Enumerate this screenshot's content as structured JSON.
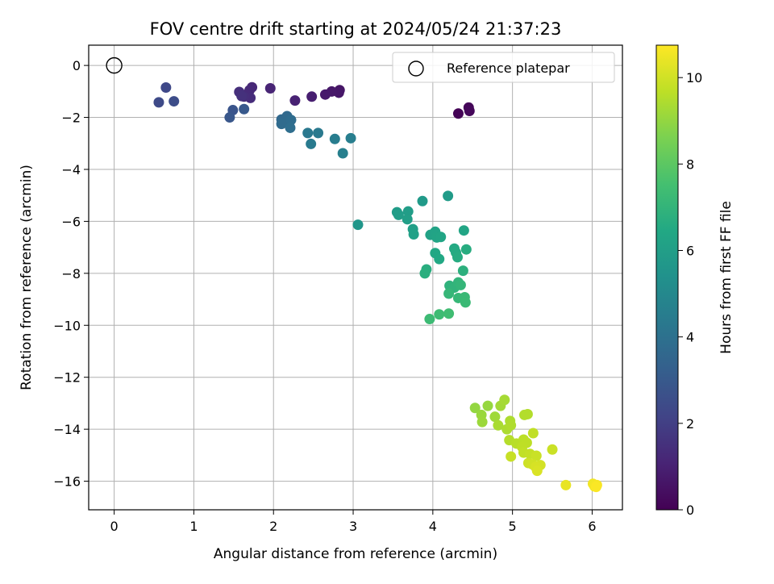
{
  "chart_data": {
    "type": "scatter",
    "title": "FOV centre drift starting at 2024/05/24 21:37:23",
    "xlabel": "Angular distance from reference (arcmin)",
    "ylabel": "Rotation from reference (arcmin)",
    "xlim": [
      -0.32,
      6.38
    ],
    "ylim": [
      -17.1,
      0.78
    ],
    "xticks": [
      0,
      1,
      2,
      3,
      4,
      5,
      6
    ],
    "yticks": [
      0,
      -2,
      -4,
      -6,
      -8,
      -10,
      -12,
      -14,
      -16
    ],
    "grid": true,
    "legend": {
      "position": "top-right",
      "entries": [
        "Reference platepar"
      ]
    },
    "colorbar": {
      "label": "Hours from first FF file",
      "min": 0,
      "max": 10.75,
      "ticks": [
        0,
        2,
        4,
        6,
        8,
        10
      ],
      "colormap": "viridis"
    },
    "reference_point": {
      "name": "Reference platepar",
      "x": 0,
      "y": 0
    },
    "points": [
      [
        4.32,
        -1.85,
        0.05
      ],
      [
        4.45,
        -1.62,
        0.12
      ],
      [
        4.46,
        -1.75,
        0.18
      ],
      [
        2.83,
        -0.95,
        0.6
      ],
      [
        2.82,
        -1.05,
        0.65
      ],
      [
        2.73,
        -1.0,
        0.7
      ],
      [
        2.65,
        -1.12,
        0.75
      ],
      [
        2.48,
        -1.2,
        0.9
      ],
      [
        2.27,
        -1.35,
        1.0
      ],
      [
        1.96,
        -0.88,
        1.1
      ],
      [
        1.73,
        -0.84,
        1.2
      ],
      [
        1.7,
        -0.95,
        1.25
      ],
      [
        1.66,
        -1.12,
        1.3
      ],
      [
        1.71,
        -1.25,
        1.35
      ],
      [
        1.63,
        -1.2,
        1.4
      ],
      [
        1.57,
        -1.02,
        1.45
      ],
      [
        1.6,
        -1.18,
        1.5
      ],
      [
        0.65,
        -0.85,
        2.3
      ],
      [
        0.56,
        -1.42,
        2.4
      ],
      [
        0.75,
        -1.38,
        2.5
      ],
      [
        1.49,
        -1.72,
        2.8
      ],
      [
        1.45,
        -2.0,
        2.9
      ],
      [
        1.63,
        -1.68,
        3.0
      ],
      [
        2.1,
        -2.08,
        3.6
      ],
      [
        2.17,
        -1.95,
        3.65
      ],
      [
        2.18,
        -2.15,
        3.7
      ],
      [
        2.1,
        -2.25,
        3.75
      ],
      [
        2.22,
        -2.1,
        3.8
      ],
      [
        2.21,
        -2.4,
        3.85
      ],
      [
        2.43,
        -2.6,
        4.3
      ],
      [
        2.56,
        -2.6,
        4.35
      ],
      [
        2.47,
        -3.02,
        4.4
      ],
      [
        2.77,
        -2.83,
        4.5
      ],
      [
        2.97,
        -2.8,
        4.55
      ],
      [
        2.87,
        -3.38,
        4.6
      ],
      [
        3.06,
        -6.13,
        5.6
      ],
      [
        3.87,
        -5.22,
        5.8
      ],
      [
        4.19,
        -5.02,
        5.85
      ],
      [
        3.55,
        -5.65,
        5.9
      ],
      [
        3.57,
        -5.75,
        5.92
      ],
      [
        3.69,
        -5.62,
        5.95
      ],
      [
        3.68,
        -5.92,
        6.0
      ],
      [
        3.75,
        -6.3,
        6.05
      ],
      [
        3.76,
        -6.5,
        6.1
      ],
      [
        3.97,
        -6.52,
        6.15
      ],
      [
        4.03,
        -6.4,
        6.2
      ],
      [
        4.05,
        -6.62,
        6.25
      ],
      [
        4.1,
        -6.6,
        6.3
      ],
      [
        4.39,
        -6.35,
        6.3
      ],
      [
        4.03,
        -7.22,
        6.4
      ],
      [
        4.08,
        -7.45,
        6.45
      ],
      [
        4.27,
        -7.05,
        6.5
      ],
      [
        4.29,
        -7.2,
        6.55
      ],
      [
        4.31,
        -7.38,
        6.6
      ],
      [
        4.42,
        -7.08,
        6.65
      ],
      [
        3.92,
        -7.85,
        6.7
      ],
      [
        3.9,
        -8.0,
        6.75
      ],
      [
        4.38,
        -7.9,
        6.8
      ],
      [
        4.21,
        -8.48,
        6.9
      ],
      [
        4.27,
        -8.55,
        6.95
      ],
      [
        4.32,
        -8.35,
        7.0
      ],
      [
        4.35,
        -8.45,
        7.05
      ],
      [
        4.2,
        -8.78,
        7.1
      ],
      [
        4.32,
        -8.95,
        7.15
      ],
      [
        4.4,
        -8.92,
        7.2
      ],
      [
        4.41,
        -9.12,
        7.25
      ],
      [
        3.96,
        -9.76,
        7.3
      ],
      [
        4.08,
        -9.58,
        7.35
      ],
      [
        4.2,
        -9.55,
        7.4
      ],
      [
        4.53,
        -13.18,
        9.0
      ],
      [
        4.69,
        -13.1,
        9.05
      ],
      [
        4.61,
        -13.45,
        9.1
      ],
      [
        4.62,
        -13.72,
        9.15
      ],
      [
        4.78,
        -13.52,
        9.2
      ],
      [
        4.85,
        -13.1,
        9.25
      ],
      [
        4.9,
        -12.87,
        9.3
      ],
      [
        4.82,
        -13.85,
        9.35
      ],
      [
        4.93,
        -14.0,
        9.4
      ],
      [
        4.97,
        -13.68,
        9.42
      ],
      [
        4.98,
        -13.85,
        9.45
      ],
      [
        5.15,
        -13.45,
        9.5
      ],
      [
        5.19,
        -13.42,
        9.52
      ],
      [
        4.96,
        -14.42,
        9.55
      ],
      [
        5.05,
        -14.55,
        9.6
      ],
      [
        5.14,
        -14.4,
        9.65
      ],
      [
        5.18,
        -14.52,
        9.68
      ],
      [
        5.12,
        -14.68,
        9.7
      ],
      [
        5.26,
        -14.15,
        9.72
      ],
      [
        5.14,
        -14.9,
        9.75
      ],
      [
        5.22,
        -14.95,
        9.8
      ],
      [
        4.98,
        -15.05,
        9.85
      ],
      [
        5.3,
        -15.02,
        9.88
      ],
      [
        5.5,
        -14.78,
        9.9
      ],
      [
        5.2,
        -15.3,
        9.95
      ],
      [
        5.25,
        -15.35,
        10.0
      ],
      [
        5.35,
        -15.38,
        10.05
      ],
      [
        5.29,
        -15.45,
        10.1
      ],
      [
        5.31,
        -15.6,
        10.15
      ],
      [
        5.67,
        -16.15,
        10.4
      ],
      [
        6.01,
        -16.1,
        10.55
      ],
      [
        6.03,
        -16.2,
        10.6
      ],
      [
        6.06,
        -16.15,
        10.65
      ],
      [
        6.05,
        -16.22,
        10.7
      ]
    ]
  }
}
